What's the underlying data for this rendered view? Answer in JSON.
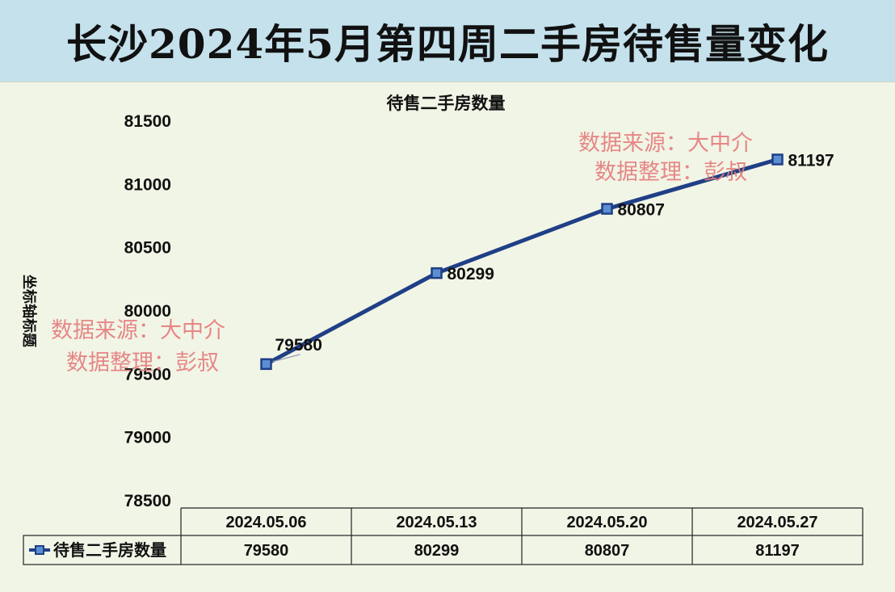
{
  "banner": {
    "title": "长沙2024年5月第四周二手房待售量变化"
  },
  "watermarks": {
    "left": [
      "数据来源：大中介",
      "数据整理：彭叔"
    ],
    "right": [
      "数据来源：大中介",
      "数据整理：彭叔"
    ]
  },
  "colors": {
    "line": "#1f3f86",
    "marker_fill": "#5b8fd1",
    "watermark": "#e57c7c",
    "banner_bg": "#c4e1ec",
    "plot_bg": "#f1f5e6"
  },
  "chart_data": {
    "type": "line",
    "title": "待售二手房数量",
    "ylabel": "坐标轴标题",
    "xlabel": "",
    "categories": [
      "2024.05.06",
      "2024.05.13",
      "2024.05.20",
      "2024.05.27"
    ],
    "series": [
      {
        "name": "待售二手房数量",
        "values": [
          79580,
          80299,
          80807,
          81197
        ]
      }
    ],
    "ylim": [
      78500,
      81500
    ],
    "yticks": [
      78500,
      79000,
      79500,
      80000,
      80500,
      81000,
      81500
    ],
    "grid": false,
    "data_labels": true,
    "data_table": true
  }
}
